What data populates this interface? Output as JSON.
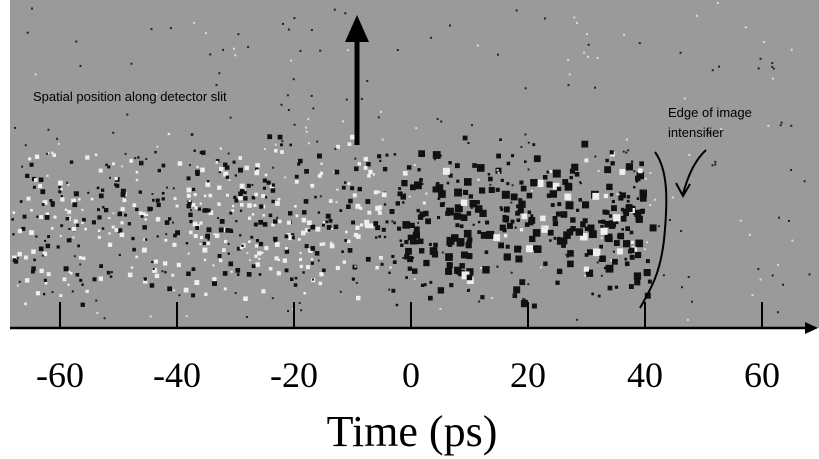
{
  "annotations": {
    "spatial": "Spatial position along detector slit",
    "edge_line1": "Edge of image",
    "edge_line2": "intensifier"
  },
  "x_axis": {
    "label": "Time (ps)",
    "ticks": [
      -60,
      -40,
      -20,
      0,
      20,
      40,
      60
    ]
  }
}
